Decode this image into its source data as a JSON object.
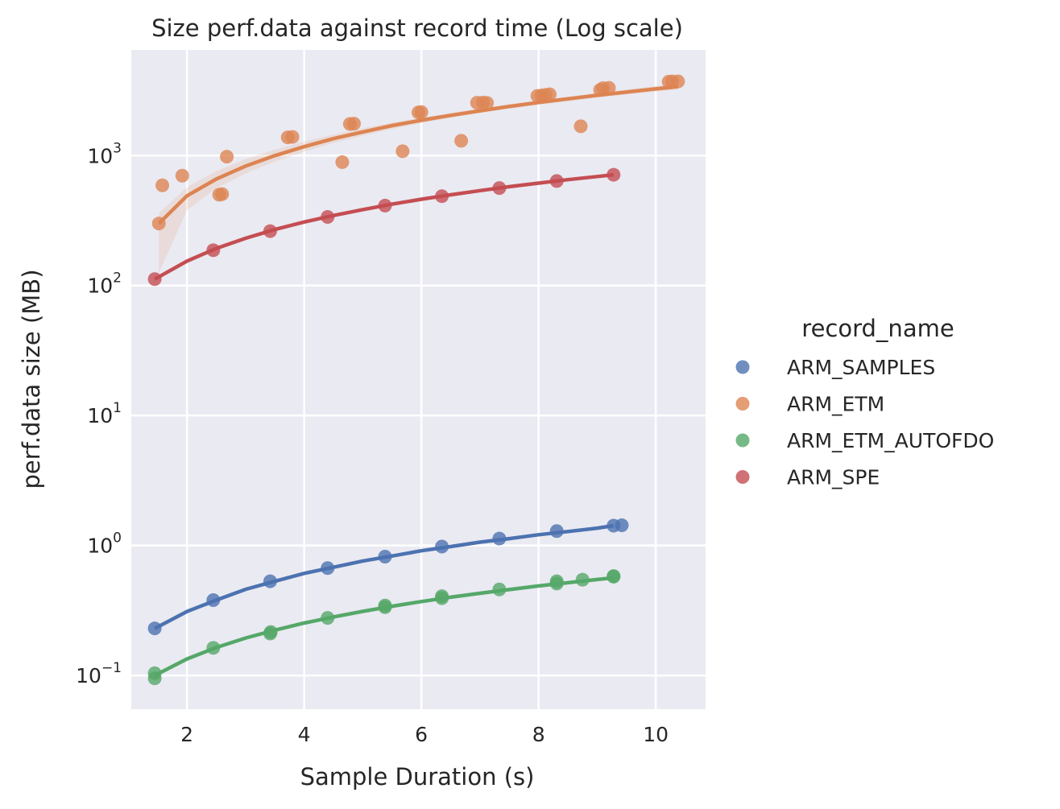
{
  "chart_data": {
    "type": "scatter",
    "title": "Size perf.data against record time (Log scale)",
    "xlabel": "Sample Duration (s)",
    "ylabel": "perf.data size (MB)",
    "xlim": [
      1.05,
      10.85
    ],
    "ylim": [
      0.055,
      6500
    ],
    "yscale": "log",
    "grid": true,
    "legend": {
      "title": "record_name",
      "placement": "right"
    },
    "x_ticks": [
      2,
      4,
      6,
      8,
      10
    ],
    "y_ticks": [
      {
        "base": "10",
        "exp": "−1",
        "value": 0.1
      },
      {
        "base": "10",
        "exp": "0",
        "value": 1
      },
      {
        "base": "10",
        "exp": "1",
        "value": 10
      },
      {
        "base": "10",
        "exp": "2",
        "value": 100
      },
      {
        "base": "10",
        "exp": "3",
        "value": 1000
      }
    ],
    "series": [
      {
        "name": "ARM_SAMPLES",
        "color": "#4c72b0",
        "points": [
          [
            1.45,
            0.23
          ],
          [
            2.45,
            0.38
          ],
          [
            3.42,
            0.53
          ],
          [
            4.4,
            0.67
          ],
          [
            5.38,
            0.82
          ],
          [
            6.35,
            0.98
          ],
          [
            7.33,
            1.13
          ],
          [
            8.31,
            1.29
          ],
          [
            9.28,
            1.42
          ],
          [
            9.42,
            1.43
          ]
        ],
        "fit": [
          [
            1.45,
            0.23
          ],
          [
            2.0,
            0.31
          ],
          [
            2.5,
            0.38
          ],
          [
            3.0,
            0.46
          ],
          [
            3.5,
            0.53
          ],
          [
            4.0,
            0.61
          ],
          [
            4.5,
            0.68
          ],
          [
            5.0,
            0.76
          ],
          [
            5.5,
            0.83
          ],
          [
            6.0,
            0.91
          ],
          [
            6.5,
            0.98
          ],
          [
            7.0,
            1.06
          ],
          [
            7.5,
            1.13
          ],
          [
            8.0,
            1.21
          ],
          [
            8.5,
            1.28
          ],
          [
            9.0,
            1.36
          ],
          [
            9.28,
            1.42
          ]
        ]
      },
      {
        "name": "ARM_ETM",
        "color": "#dd8452",
        "points": [
          [
            1.52,
            300
          ],
          [
            1.58,
            590
          ],
          [
            1.92,
            700
          ],
          [
            2.55,
            500
          ],
          [
            2.6,
            505
          ],
          [
            2.68,
            980
          ],
          [
            3.72,
            1380
          ],
          [
            3.8,
            1390
          ],
          [
            4.65,
            890
          ],
          [
            4.78,
            1750
          ],
          [
            4.85,
            1760
          ],
          [
            5.68,
            1080
          ],
          [
            5.95,
            2150
          ],
          [
            6.0,
            2160
          ],
          [
            6.68,
            1300
          ],
          [
            6.95,
            2550
          ],
          [
            7.05,
            2560
          ],
          [
            7.12,
            2540
          ],
          [
            7.98,
            2880
          ],
          [
            8.05,
            2900
          ],
          [
            8.12,
            2930
          ],
          [
            8.19,
            2960
          ],
          [
            8.72,
            1680
          ],
          [
            9.05,
            3200
          ],
          [
            9.1,
            3300
          ],
          [
            9.2,
            3320
          ],
          [
            10.22,
            3700
          ],
          [
            10.28,
            3720
          ],
          [
            10.38,
            3720
          ]
        ],
        "fit": [
          [
            1.52,
            300
          ],
          [
            2.0,
            490
          ],
          [
            2.5,
            660
          ],
          [
            3.0,
            830
          ],
          [
            3.5,
            1000
          ],
          [
            4.0,
            1170
          ],
          [
            4.5,
            1350
          ],
          [
            5.0,
            1520
          ],
          [
            5.5,
            1700
          ],
          [
            6.0,
            1870
          ],
          [
            6.5,
            2040
          ],
          [
            7.0,
            2210
          ],
          [
            7.5,
            2390
          ],
          [
            8.0,
            2560
          ],
          [
            8.5,
            2730
          ],
          [
            9.0,
            2910
          ],
          [
            9.5,
            3080
          ],
          [
            10.0,
            3260
          ],
          [
            10.38,
            3390
          ]
        ],
        "band_upper": [
          [
            1.52,
            360
          ],
          [
            2.0,
            570
          ],
          [
            2.5,
            760
          ],
          [
            3.0,
            940
          ],
          [
            3.5,
            1110
          ],
          [
            4.0,
            1280
          ],
          [
            4.5,
            1450
          ],
          [
            5.0,
            1620
          ],
          [
            5.5,
            1790
          ],
          [
            6.0,
            1960
          ],
          [
            6.5,
            2130
          ],
          [
            7.0,
            2300
          ],
          [
            7.5,
            2480
          ],
          [
            8.0,
            2660
          ],
          [
            8.5,
            2840
          ],
          [
            9.0,
            3030
          ],
          [
            9.5,
            3220
          ],
          [
            10.0,
            3420
          ],
          [
            10.38,
            3580
          ]
        ],
        "band_lower": [
          [
            1.52,
            125
          ],
          [
            2.0,
            380
          ],
          [
            2.5,
            560
          ],
          [
            3.0,
            730
          ],
          [
            3.5,
            900
          ],
          [
            4.0,
            1070
          ],
          [
            4.5,
            1250
          ],
          [
            5.0,
            1420
          ],
          [
            5.5,
            1600
          ],
          [
            6.0,
            1780
          ],
          [
            6.5,
            1950
          ],
          [
            7.0,
            2120
          ],
          [
            7.5,
            2290
          ],
          [
            8.0,
            2460
          ],
          [
            8.5,
            2620
          ],
          [
            9.0,
            2790
          ],
          [
            9.5,
            2950
          ],
          [
            10.0,
            3110
          ],
          [
            10.38,
            3220
          ]
        ]
      },
      {
        "name": "ARM_ETM_AUTOFDO",
        "color": "#55a868",
        "points": [
          [
            1.45,
            0.104
          ],
          [
            1.45,
            0.095
          ],
          [
            2.45,
            0.163
          ],
          [
            3.42,
            0.21
          ],
          [
            3.43,
            0.216
          ],
          [
            4.4,
            0.277
          ],
          [
            5.38,
            0.335
          ],
          [
            5.38,
            0.345
          ],
          [
            6.35,
            0.393
          ],
          [
            6.35,
            0.407
          ],
          [
            7.33,
            0.459
          ],
          [
            8.31,
            0.51
          ],
          [
            8.31,
            0.53
          ],
          [
            8.75,
            0.545
          ],
          [
            9.28,
            0.575
          ],
          [
            9.28,
            0.582
          ]
        ],
        "fit": [
          [
            1.45,
            0.1
          ],
          [
            2.0,
            0.134
          ],
          [
            2.5,
            0.164
          ],
          [
            3.0,
            0.194
          ],
          [
            3.5,
            0.223
          ],
          [
            4.0,
            0.253
          ],
          [
            4.5,
            0.282
          ],
          [
            5.0,
            0.311
          ],
          [
            5.5,
            0.341
          ],
          [
            6.0,
            0.37
          ],
          [
            6.5,
            0.4
          ],
          [
            7.0,
            0.429
          ],
          [
            7.5,
            0.458
          ],
          [
            8.0,
            0.488
          ],
          [
            8.5,
            0.517
          ],
          [
            9.0,
            0.547
          ],
          [
            9.28,
            0.563
          ]
        ]
      },
      {
        "name": "ARM_SPE",
        "color": "#c44e52",
        "points": [
          [
            1.45,
            112
          ],
          [
            2.45,
            187
          ],
          [
            3.42,
            262
          ],
          [
            4.4,
            337
          ],
          [
            5.38,
            412
          ],
          [
            6.35,
            487
          ],
          [
            7.33,
            562
          ],
          [
            8.31,
            637
          ],
          [
            9.28,
            712
          ]
        ],
        "fit": [
          [
            1.45,
            112
          ],
          [
            2.0,
            154
          ],
          [
            2.5,
            193
          ],
          [
            3.0,
            231
          ],
          [
            3.5,
            270
          ],
          [
            4.0,
            308
          ],
          [
            4.5,
            346
          ],
          [
            5.0,
            384
          ],
          [
            5.5,
            423
          ],
          [
            6.0,
            461
          ],
          [
            6.5,
            499
          ],
          [
            7.0,
            537
          ],
          [
            7.5,
            576
          ],
          [
            8.0,
            614
          ],
          [
            8.5,
            652
          ],
          [
            9.0,
            690
          ],
          [
            9.28,
            712
          ]
        ]
      }
    ]
  }
}
